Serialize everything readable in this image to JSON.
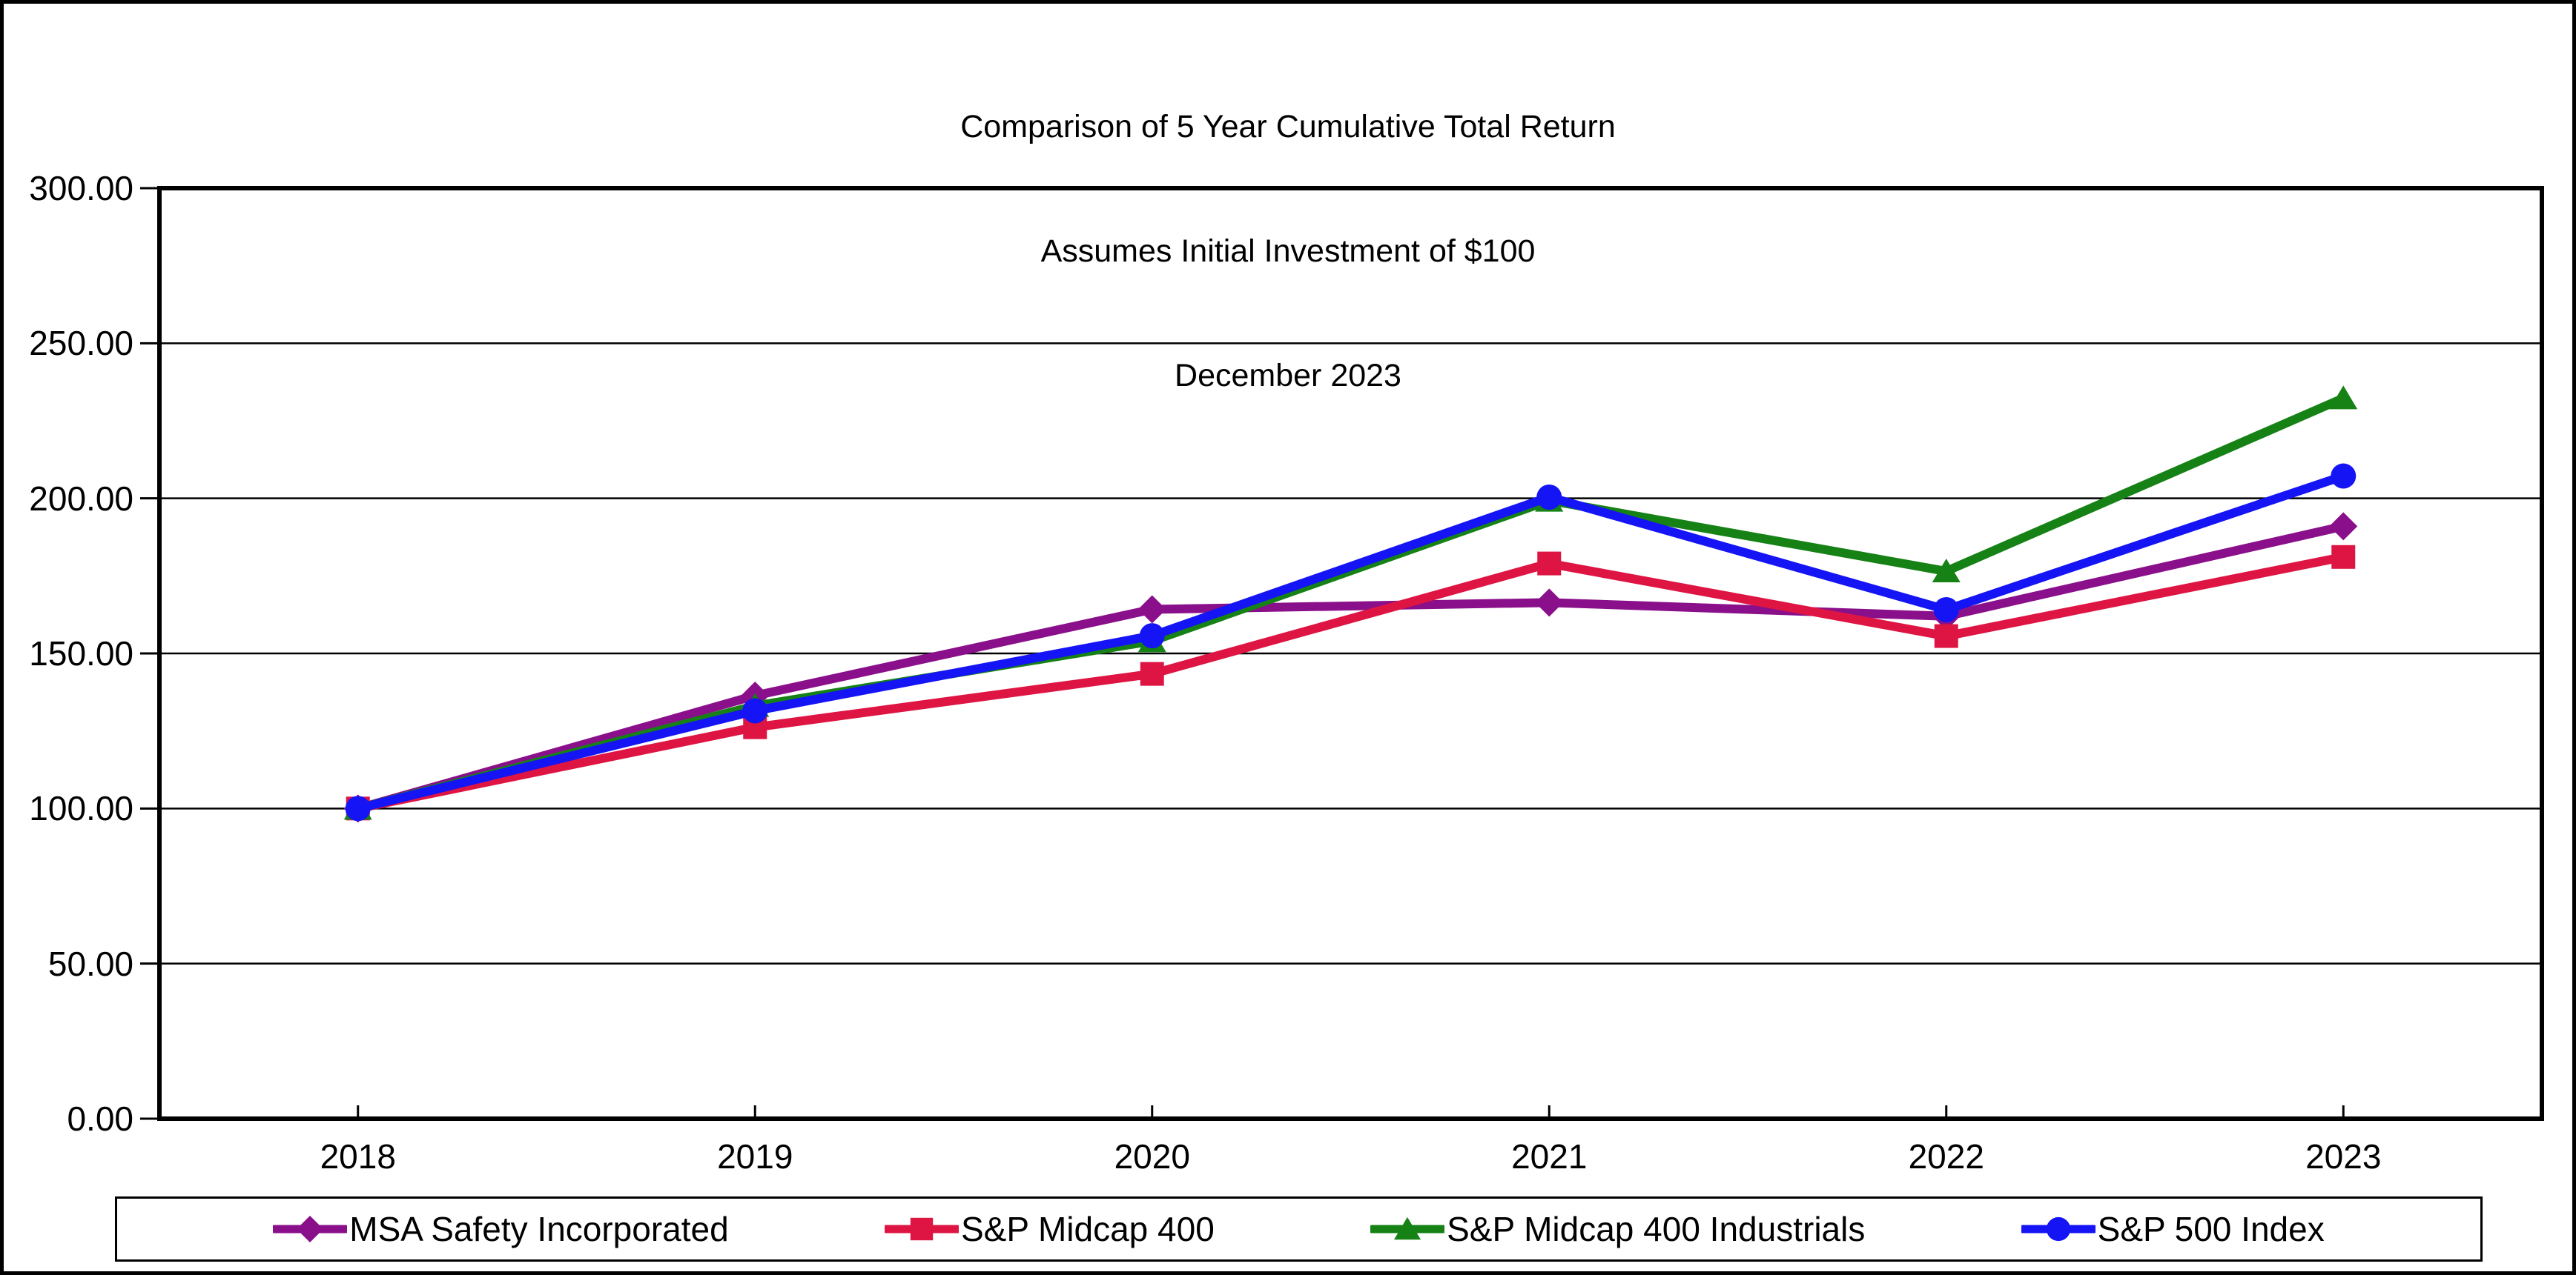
{
  "title": {
    "line1": "Comparison of 5 Year Cumulative Total Return",
    "line2": "Assumes Initial Investment of $100",
    "line3": "December 2023"
  },
  "chart_data": {
    "type": "line",
    "title": "Comparison of 5 Year Cumulative Total Return",
    "subtitle": "Assumes Initial Investment of $100",
    "period_label": "December 2023",
    "categories": [
      "2018",
      "2019",
      "2020",
      "2021",
      "2022",
      "2023"
    ],
    "series": [
      {
        "name": "MSA Safety Incorporated",
        "color": "#8A0F8A",
        "marker": "diamond",
        "values": [
          100.0,
          136.4,
          164.2,
          166.4,
          162.0,
          191.0
        ]
      },
      {
        "name": "S&P Midcap 400",
        "color": "#DE1543",
        "marker": "square",
        "values": [
          100.0,
          126.2,
          143.4,
          179.0,
          155.6,
          181.1
        ]
      },
      {
        "name": "S&P Midcap 400 Industrials",
        "color": "#168216",
        "marker": "triangle",
        "values": [
          100.0,
          133.1,
          154.0,
          199.3,
          176.5,
          232.3
        ]
      },
      {
        "name": "S&P 500 Index",
        "color": "#1414F5",
        "marker": "circle",
        "values": [
          100.0,
          131.5,
          155.7,
          200.4,
          164.1,
          207.2
        ]
      }
    ],
    "ylim": [
      0,
      300
    ],
    "y_tick_step": 50,
    "y_tick_labels": [
      "0.00",
      "50.00",
      "100.00",
      "150.00",
      "200.00",
      "250.00",
      "300.00"
    ],
    "xlabel": "",
    "ylabel": "",
    "grid": "horizontal",
    "legend_position": "bottom",
    "axis_color": "#000000"
  }
}
